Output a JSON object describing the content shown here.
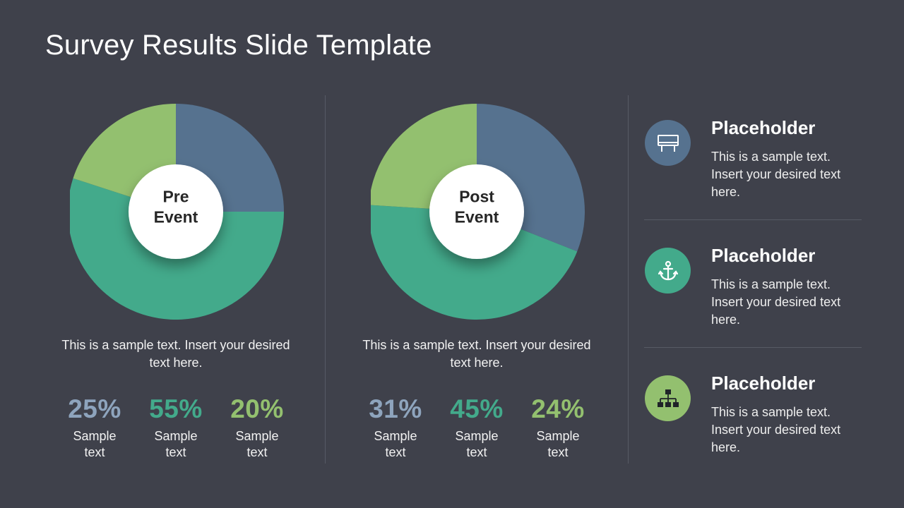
{
  "slide": {
    "title": "Survey Results Slide Template"
  },
  "colors": {
    "blue": "#56728f",
    "teal": "#43aa8b",
    "green": "#93c06f",
    "background": "#3f414b",
    "value_blue": "#8ea4bd"
  },
  "chart_data": [
    {
      "type": "pie",
      "title": "Pre Event",
      "center_label": "Pre\nEvent",
      "categories": [
        "Sample text",
        "Sample text",
        "Sample text"
      ],
      "values": [
        25,
        55,
        20
      ],
      "value_labels": [
        "25%",
        "55%",
        "20%"
      ],
      "colors": [
        "#56728f",
        "#43aa8b",
        "#93c06f"
      ],
      "caption": "This is a sample text. Insert your desired text here."
    },
    {
      "type": "pie",
      "title": "Post Event",
      "center_label": "Post\nEvent",
      "categories": [
        "Sample text",
        "Sample text",
        "Sample text"
      ],
      "values": [
        31,
        45,
        24
      ],
      "value_labels": [
        "31%",
        "45%",
        "24%"
      ],
      "colors": [
        "#56728f",
        "#43aa8b",
        "#93c06f"
      ],
      "caption": "This is a sample text. Insert your desired text here."
    }
  ],
  "stats_left": [
    {
      "value": "25%",
      "label": "Sample\ntext",
      "color": "#8ea4bd"
    },
    {
      "value": "55%",
      "label": "Sample\ntext",
      "color": "#43aa8b"
    },
    {
      "value": "20%",
      "label": "Sample\ntext",
      "color": "#93c06f"
    }
  ],
  "stats_right": [
    {
      "value": "31%",
      "label": "Sample\ntext",
      "color": "#8ea4bd"
    },
    {
      "value": "45%",
      "label": "Sample\ntext",
      "color": "#43aa8b"
    },
    {
      "value": "24%",
      "label": "Sample\ntext",
      "color": "#93c06f"
    }
  ],
  "sidebar": {
    "items": [
      {
        "heading": "Placeholder",
        "text": "This is a sample text. Insert your desired text here.",
        "icon": "billboard-icon",
        "color": "#56728f"
      },
      {
        "heading": "Placeholder",
        "text": "This is a sample text. Insert your desired text here.",
        "icon": "anchor-icon",
        "color": "#43aa8b"
      },
      {
        "heading": "Placeholder",
        "text": "This is a sample text. Insert your desired text here.",
        "icon": "org-chart-icon",
        "color": "#93c06f"
      }
    ]
  }
}
